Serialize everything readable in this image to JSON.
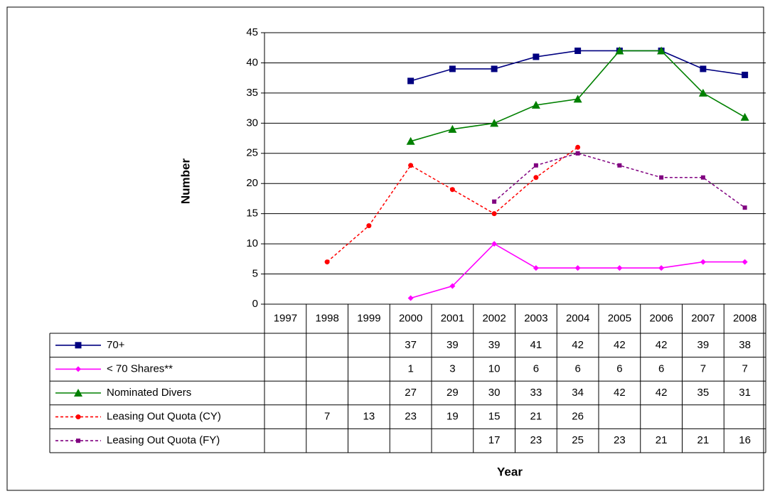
{
  "chart_data": {
    "type": "line",
    "x_label": "Year",
    "y_label": "Number",
    "categories": [
      "1997",
      "1998",
      "1999",
      "2000",
      "2001",
      "2002",
      "2003",
      "2004",
      "2005",
      "2006",
      "2007",
      "2008"
    ],
    "ylim": [
      0,
      45
    ],
    "yticks": [
      0,
      5,
      10,
      15,
      20,
      25,
      30,
      35,
      40,
      45
    ],
    "grid": true,
    "series": [
      {
        "name": "70+",
        "color": "#000080",
        "marker": "square",
        "dashed": false,
        "values": [
          null,
          null,
          null,
          37,
          39,
          39,
          41,
          42,
          42,
          42,
          39,
          38
        ]
      },
      {
        "name": "< 70 Shares**",
        "color": "#ff00ff",
        "marker": "diamond",
        "dashed": false,
        "values": [
          null,
          null,
          null,
          1,
          3,
          10,
          6,
          6,
          6,
          6,
          7,
          7
        ]
      },
      {
        "name": "Nominated Divers",
        "color": "#008000",
        "marker": "triangle",
        "dashed": false,
        "values": [
          null,
          null,
          null,
          27,
          29,
          30,
          33,
          34,
          42,
          42,
          35,
          31
        ]
      },
      {
        "name": "Leasing Out Quota (CY)",
        "color": "#ff0000",
        "marker": "circle",
        "dashed": true,
        "values": [
          null,
          7,
          13,
          23,
          19,
          15,
          21,
          26,
          null,
          null,
          null,
          null
        ]
      },
      {
        "name": "Leasing Out Quota (FY)",
        "color": "#800080",
        "marker": "small-square",
        "dashed": true,
        "values": [
          null,
          null,
          null,
          null,
          null,
          17,
          23,
          25,
          23,
          21,
          21,
          16
        ]
      }
    ]
  }
}
